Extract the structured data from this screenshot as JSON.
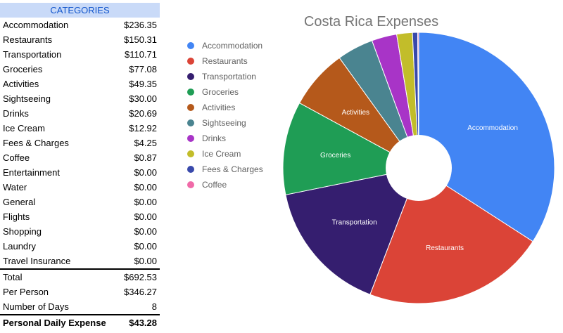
{
  "table": {
    "header": "CATEGORIES",
    "rows": [
      {
        "label": "Accommodation",
        "value": "$236.35"
      },
      {
        "label": "Restaurants",
        "value": "$150.31"
      },
      {
        "label": "Transportation",
        "value": "$110.71"
      },
      {
        "label": "Groceries",
        "value": "$77.08"
      },
      {
        "label": "Activities",
        "value": "$49.35"
      },
      {
        "label": "Sightseeing",
        "value": "$30.00"
      },
      {
        "label": "Drinks",
        "value": "$20.69"
      },
      {
        "label": "Ice Cream",
        "value": "$12.92"
      },
      {
        "label": "Fees & Charges",
        "value": "$4.25"
      },
      {
        "label": "Coffee",
        "value": "$0.87"
      },
      {
        "label": "Entertainment",
        "value": "$0.00"
      },
      {
        "label": "Water",
        "value": "$0.00"
      },
      {
        "label": "General",
        "value": "$0.00"
      },
      {
        "label": "Flights",
        "value": "$0.00"
      },
      {
        "label": "Shopping",
        "value": "$0.00"
      },
      {
        "label": "Laundry",
        "value": "$0.00"
      },
      {
        "label": "Travel Insurance",
        "value": "$0.00"
      }
    ],
    "summary": [
      {
        "label": "Total",
        "value": "$692.53"
      },
      {
        "label": "Per Person",
        "value": "$346.27"
      },
      {
        "label": "Number of Days",
        "value": "8"
      }
    ],
    "final": {
      "label": "Personal Daily Expense",
      "value": "$43.28"
    }
  },
  "chart_data": {
    "type": "pie",
    "title": "Costa Rica Expenses",
    "legend_position": "left",
    "donut_hole": true,
    "slices": [
      {
        "label": "Accommodation",
        "value": 236.35,
        "color": "#4285f4",
        "show_label": true
      },
      {
        "label": "Restaurants",
        "value": 150.31,
        "color": "#db4437",
        "show_label": true
      },
      {
        "label": "Transportation",
        "value": 110.71,
        "color": "#351e6f",
        "show_label": true
      },
      {
        "label": "Groceries",
        "value": 77.08,
        "color": "#1f9d55",
        "show_label": true
      },
      {
        "label": "Activities",
        "value": 49.35,
        "color": "#b5591b",
        "show_label": true
      },
      {
        "label": "Sightseeing",
        "value": 30.0,
        "color": "#4a8490",
        "show_label": false
      },
      {
        "label": "Drinks",
        "value": 20.69,
        "color": "#a834c7",
        "show_label": false
      },
      {
        "label": "Ice Cream",
        "value": 12.92,
        "color": "#c2bd2a",
        "show_label": false
      },
      {
        "label": "Fees & Charges",
        "value": 4.25,
        "color": "#3949ab",
        "show_label": false
      },
      {
        "label": "Coffee",
        "value": 0.87,
        "color": "#f06aa8",
        "show_label": false
      }
    ]
  }
}
